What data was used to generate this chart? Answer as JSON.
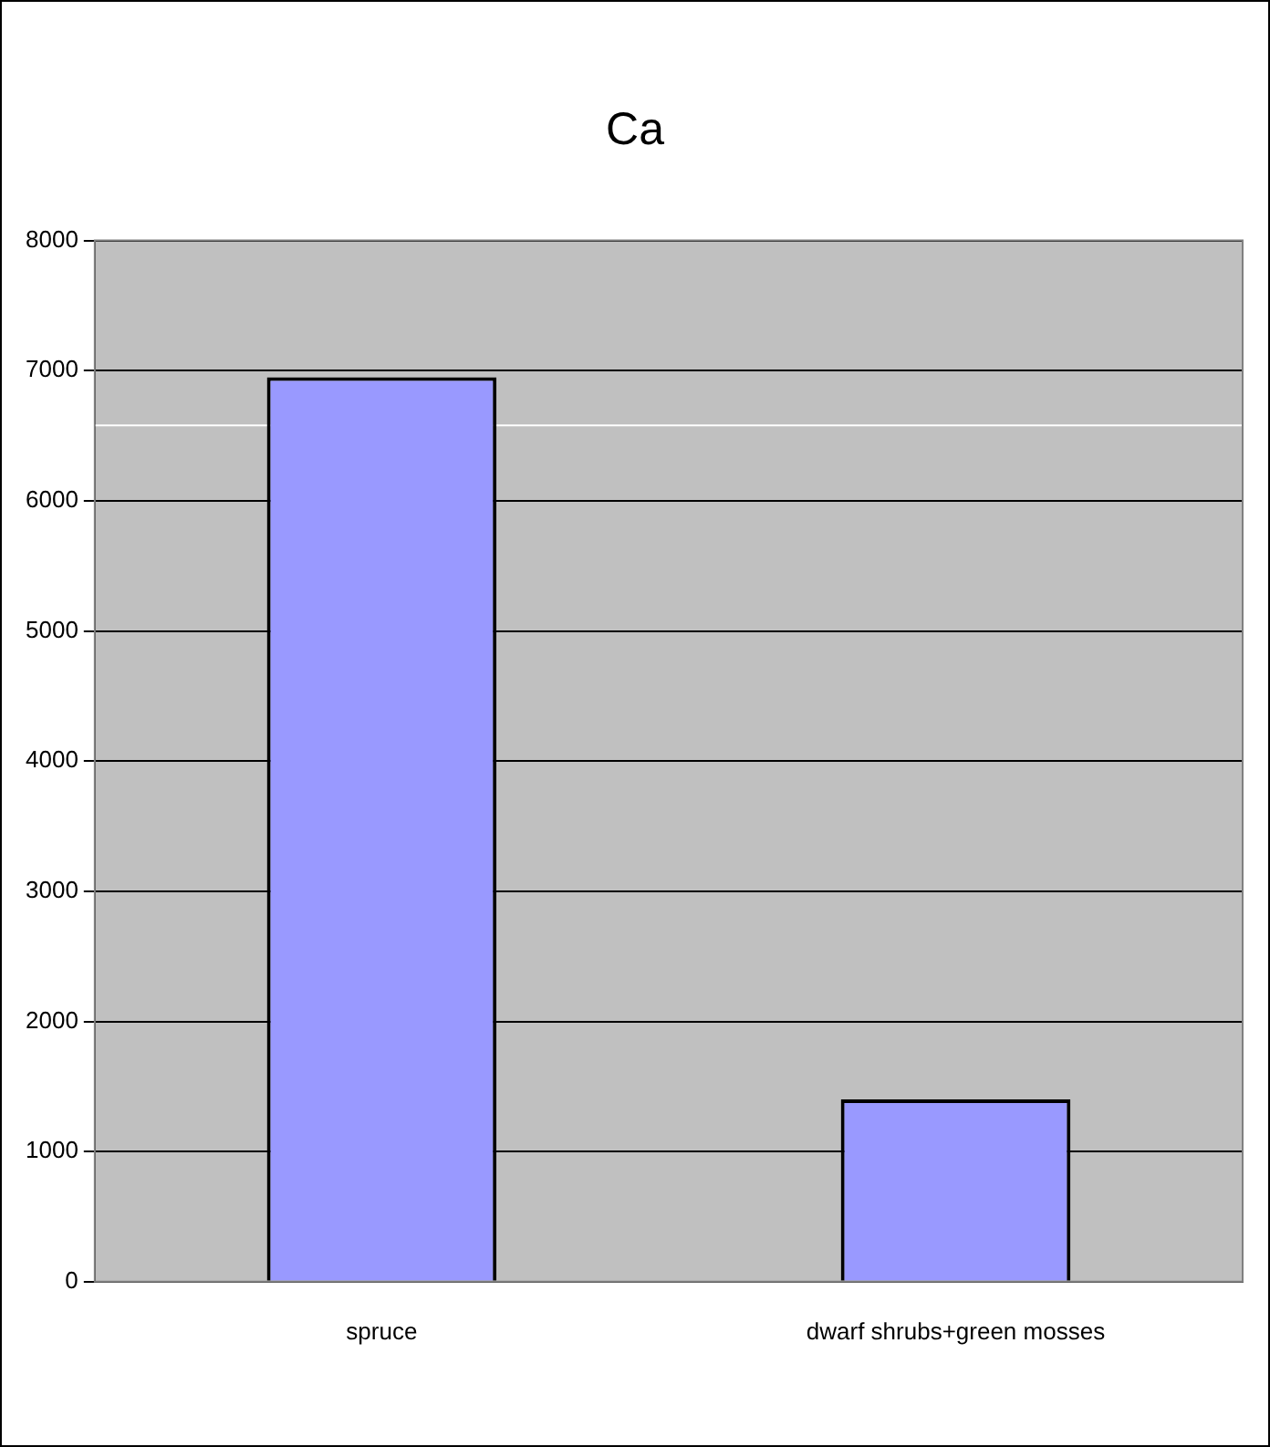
{
  "chart_data": {
    "type": "bar",
    "title": "Ca",
    "categories": [
      "spruce",
      "dwarf shrubs+green mosses"
    ],
    "values": [
      6950,
      1400
    ],
    "color": "#9999ff",
    "ylim": [
      0,
      8000
    ],
    "yticks": [
      0,
      1000,
      2000,
      3000,
      4000,
      5000,
      6000,
      7000,
      8000
    ],
    "grid": "y",
    "ref_lines": [
      {
        "axis": "y",
        "value": 6580,
        "color": "#ffffff"
      }
    ]
  }
}
